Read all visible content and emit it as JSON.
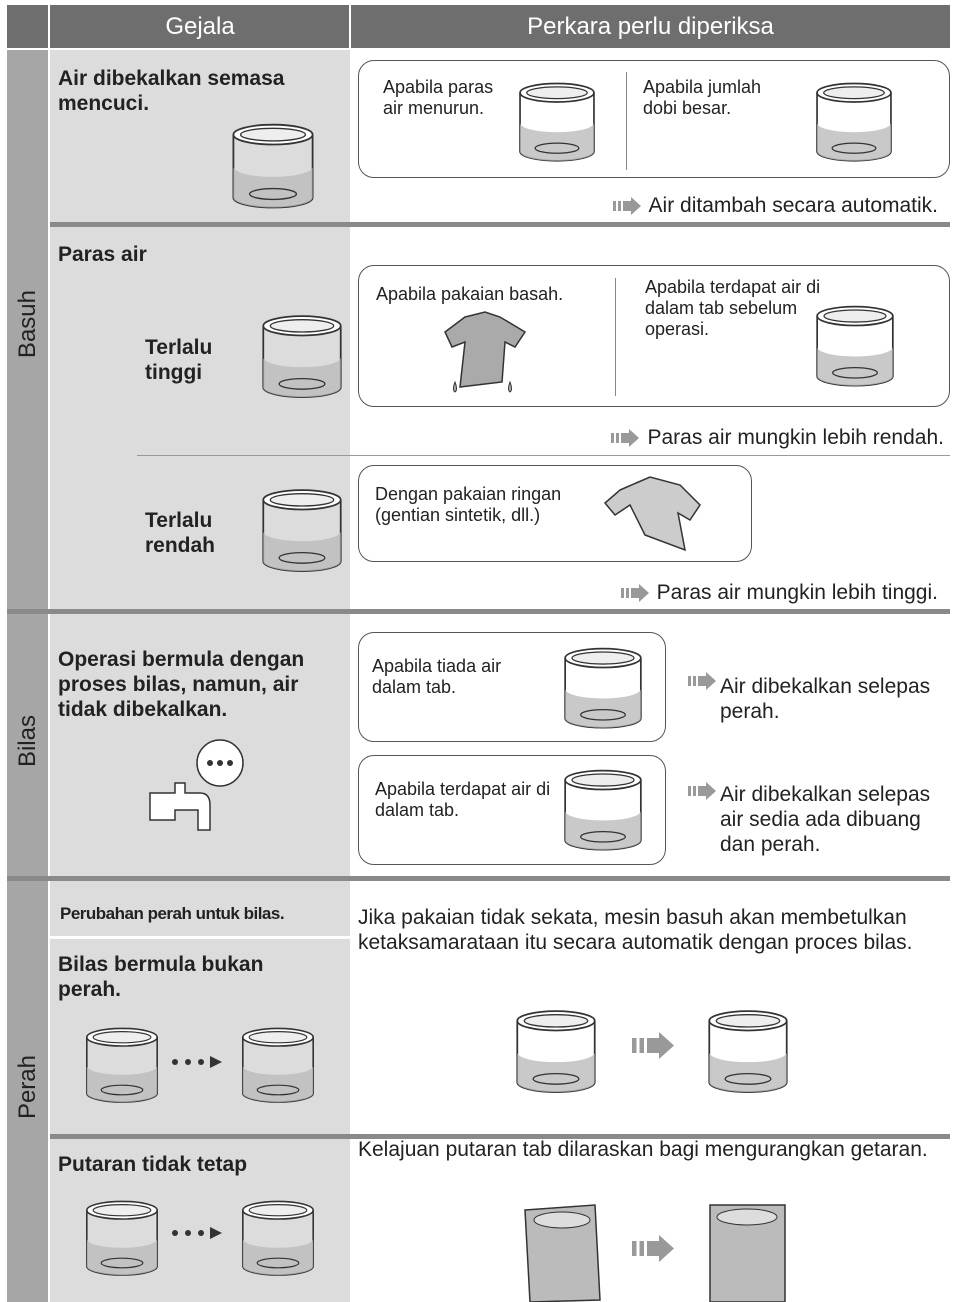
{
  "header": {
    "symptom": "Gejala",
    "check": "Perkara perlu diperiksa"
  },
  "sections": [
    {
      "label": "Basuh",
      "rows": [
        {
          "symptom": "Air dibekalkan semasa mencuci.",
          "checks": [
            "Apabila paras air menurun.",
            "Apabila jumlah dobi besar."
          ],
          "result": "Air ditambah secara automatik."
        },
        {
          "symptom": "Paras air",
          "sub": [
            {
              "label": "Terlalu tinggi",
              "checks": [
                "Apabila pakaian basah.",
                "Apabila terdapat air di dalam tab sebelum operasi."
              ],
              "result": "Paras air mungkin lebih rendah."
            },
            {
              "label": "Terlalu rendah",
              "checks": [
                "Dengan pakaian ringan (gentian sintetik, dll.)"
              ],
              "result": "Paras air mungkin lebih tinggi."
            }
          ]
        }
      ]
    },
    {
      "label": "Bilas",
      "rows": [
        {
          "symptom": "Operasi bermula dengan proses bilas, namun, air tidak dibekalkan.",
          "checks": [
            {
              "text": "Apabila tiada air dalam tab.",
              "result": "Air dibekalkan selepas perah."
            },
            {
              "text": "Apabila terdapat air di dalam tab.",
              "result": "Air dibekalkan selepas air sedia ada dibuang dan perah."
            }
          ]
        }
      ]
    },
    {
      "label": "Perah",
      "rows": [
        {
          "note": "Perubahan perah untuk bilas.",
          "symptom": "Bilas bermula bukan perah.",
          "description": "Jika pakaian tidak sekata, mesin basuh akan membetulkan ketaksamarataan itu secara automatik dengan proces bilas."
        },
        {
          "symptom": "Putaran tidak tetap",
          "description": "Kelajuan putaran tab dilaraskan bagi mengurangkan getaran."
        }
      ]
    }
  ]
}
